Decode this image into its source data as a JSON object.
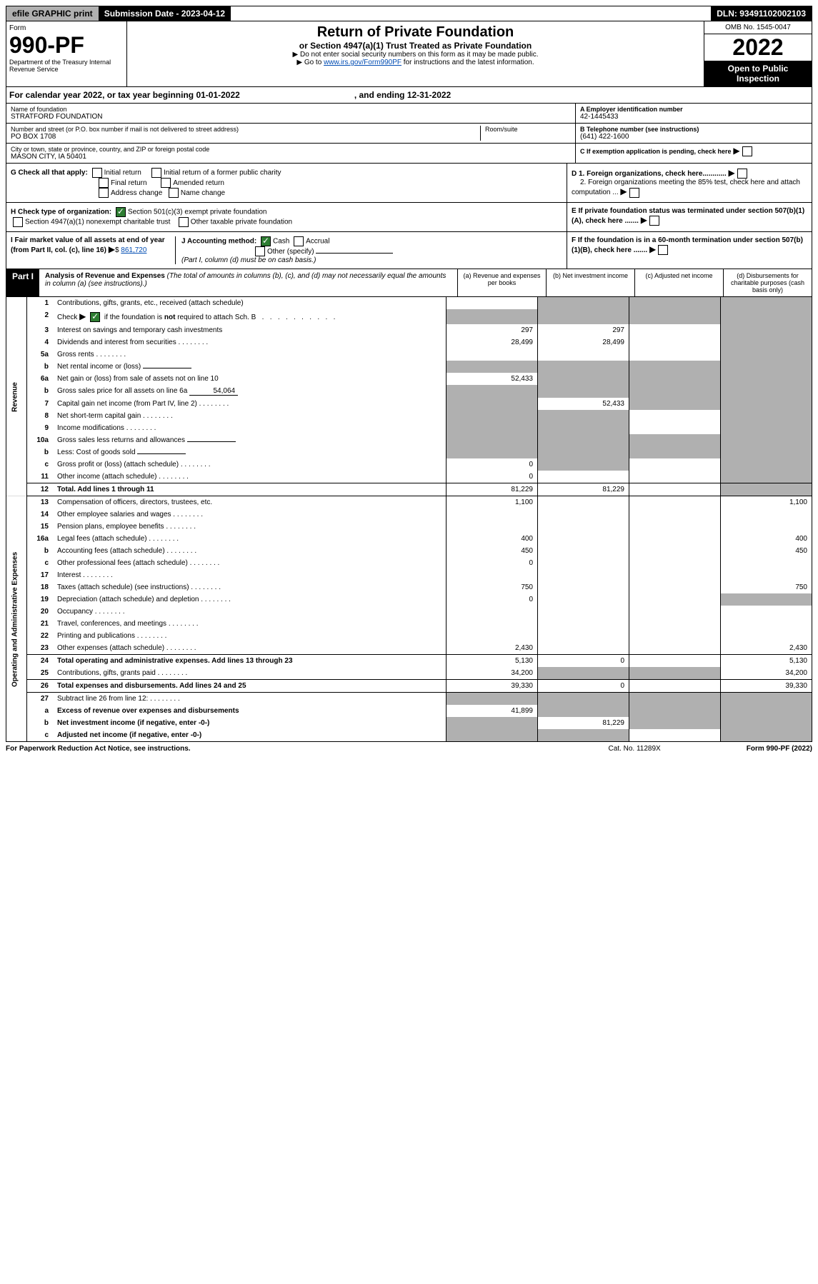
{
  "topbar": {
    "efile": "efile GRAPHIC print",
    "submission": "Submission Date - 2023-04-12",
    "dln": "DLN: 93491102002103"
  },
  "header": {
    "form_label": "Form",
    "form_number": "990-PF",
    "dept": "Department of the Treasury\nInternal Revenue Service",
    "title": "Return of Private Foundation",
    "subtitle": "or Section 4947(a)(1) Trust Treated as Private Foundation",
    "instr1": "▶ Do not enter social security numbers on this form as it may be made public.",
    "instr2_pre": "▶ Go to ",
    "instr2_link": "www.irs.gov/Form990PF",
    "instr2_post": " for instructions and the latest information.",
    "omb": "OMB No. 1545-0047",
    "year": "2022",
    "open": "Open to Public Inspection"
  },
  "cal_year": "For calendar year 2022, or tax year beginning 01-01-2022",
  "cal_year_end": ", and ending 12-31-2022",
  "foundation": {
    "name_label": "Name of foundation",
    "name": "STRATFORD FOUNDATION",
    "addr_label": "Number and street (or P.O. box number if mail is not delivered to street address)",
    "addr": "PO BOX 1708",
    "room_label": "Room/suite",
    "city_label": "City or town, state or province, country, and ZIP or foreign postal code",
    "city": "MASON CITY, IA  50401",
    "ein_label": "A Employer identification number",
    "ein": "42-1445433",
    "phone_label": "B Telephone number (see instructions)",
    "phone": "(641) 422-1600",
    "c_label": "C If exemption application is pending, check here",
    "d1": "D 1. Foreign organizations, check here............",
    "d2": "2. Foreign organizations meeting the 85% test, check here and attach computation ...",
    "e": "E  If private foundation status was terminated under section 507(b)(1)(A), check here .......",
    "f": "F  If the foundation is in a 60-month termination under section 507(b)(1)(B), check here .......",
    "g_label": "G Check all that apply:",
    "g_initial": "Initial return",
    "g_initial_former": "Initial return of a former public charity",
    "g_final": "Final return",
    "g_amended": "Amended return",
    "g_addr": "Address change",
    "g_name": "Name change",
    "h_label": "H Check type of organization:",
    "h_501c3": "Section 501(c)(3) exempt private foundation",
    "h_4947": "Section 4947(a)(1) nonexempt charitable trust",
    "h_other": "Other taxable private foundation",
    "i_label": "I Fair market value of all assets at end of year (from Part II, col. (c), line 16)",
    "i_value": "861,720",
    "j_label": "J Accounting method:",
    "j_cash": "Cash",
    "j_accrual": "Accrual",
    "j_other": "Other (specify)",
    "j_note": "(Part I, column (d) must be on cash basis.)"
  },
  "part1": {
    "label": "Part I",
    "title": "Analysis of Revenue and Expenses",
    "note": "(The total of amounts in columns (b), (c), and (d) may not necessarily equal the amounts in column (a) (see instructions).)",
    "col_a": "(a)   Revenue and expenses per books",
    "col_b": "(b)   Net investment income",
    "col_c": "(c)   Adjusted net income",
    "col_d": "(d)   Disbursements for charitable purposes (cash basis only)"
  },
  "side": {
    "revenue": "Revenue",
    "expenses": "Operating and Administrative Expenses"
  },
  "rows": [
    {
      "n": "1",
      "label": "Contributions, gifts, grants, etc., received (attach schedule)",
      "a": "",
      "b": "S",
      "c": "S",
      "d": "S"
    },
    {
      "n": "2",
      "label": "Check ▶ ☑ if the foundation is not required to attach Sch. B",
      "type": "check",
      "a": "S",
      "b": "S",
      "c": "S",
      "d": "S"
    },
    {
      "n": "3",
      "label": "Interest on savings and temporary cash investments",
      "a": "297",
      "b": "297",
      "c": "",
      "d": "S"
    },
    {
      "n": "4",
      "label": "Dividends and interest from securities",
      "a": "28,499",
      "b": "28,499",
      "c": "",
      "d": "S"
    },
    {
      "n": "5a",
      "label": "Gross rents",
      "a": "",
      "b": "",
      "c": "",
      "d": "S"
    },
    {
      "n": "b",
      "label": "Net rental income or (loss)",
      "sub": "",
      "a": "S",
      "b": "S",
      "c": "S",
      "d": "S"
    },
    {
      "n": "6a",
      "label": "Net gain or (loss) from sale of assets not on line 10",
      "a": "52,433",
      "b": "S",
      "c": "S",
      "d": "S"
    },
    {
      "n": "b",
      "label": "Gross sales price for all assets on line 6a",
      "sub": "54,064",
      "a": "S",
      "b": "S",
      "c": "S",
      "d": "S"
    },
    {
      "n": "7",
      "label": "Capital gain net income (from Part IV, line 2)",
      "a": "S",
      "b": "52,433",
      "c": "S",
      "d": "S"
    },
    {
      "n": "8",
      "label": "Net short-term capital gain",
      "a": "S",
      "b": "S",
      "c": "",
      "d": "S"
    },
    {
      "n": "9",
      "label": "Income modifications",
      "a": "S",
      "b": "S",
      "c": "",
      "d": "S"
    },
    {
      "n": "10a",
      "label": "Gross sales less returns and allowances",
      "sub": "",
      "a": "S",
      "b": "S",
      "c": "S",
      "d": "S"
    },
    {
      "n": "b",
      "label": "Less: Cost of goods sold",
      "sub": "",
      "a": "S",
      "b": "S",
      "c": "S",
      "d": "S"
    },
    {
      "n": "c",
      "label": "Gross profit or (loss) (attach schedule)",
      "a": "0",
      "b": "S",
      "c": "",
      "d": "S"
    },
    {
      "n": "11",
      "label": "Other income (attach schedule)",
      "a": "0",
      "b": "",
      "c": "",
      "d": "S"
    },
    {
      "n": "12",
      "label": "Total. Add lines 1 through 11",
      "bold": true,
      "a": "81,229",
      "b": "81,229",
      "c": "",
      "d": "S",
      "sep": true
    },
    {
      "n": "13",
      "label": "Compensation of officers, directors, trustees, etc.",
      "a": "1,100",
      "b": "",
      "c": "",
      "d": "1,100",
      "sep": true
    },
    {
      "n": "14",
      "label": "Other employee salaries and wages",
      "a": "",
      "b": "",
      "c": "",
      "d": ""
    },
    {
      "n": "15",
      "label": "Pension plans, employee benefits",
      "a": "",
      "b": "",
      "c": "",
      "d": ""
    },
    {
      "n": "16a",
      "label": "Legal fees (attach schedule)",
      "a": "400",
      "b": "",
      "c": "",
      "d": "400"
    },
    {
      "n": "b",
      "label": "Accounting fees (attach schedule)",
      "a": "450",
      "b": "",
      "c": "",
      "d": "450"
    },
    {
      "n": "c",
      "label": "Other professional fees (attach schedule)",
      "a": "0",
      "b": "",
      "c": "",
      "d": ""
    },
    {
      "n": "17",
      "label": "Interest",
      "a": "",
      "b": "",
      "c": "",
      "d": ""
    },
    {
      "n": "18",
      "label": "Taxes (attach schedule) (see instructions)",
      "a": "750",
      "b": "",
      "c": "",
      "d": "750"
    },
    {
      "n": "19",
      "label": "Depreciation (attach schedule) and depletion",
      "a": "0",
      "b": "",
      "c": "",
      "d": "S"
    },
    {
      "n": "20",
      "label": "Occupancy",
      "a": "",
      "b": "",
      "c": "",
      "d": ""
    },
    {
      "n": "21",
      "label": "Travel, conferences, and meetings",
      "a": "",
      "b": "",
      "c": "",
      "d": ""
    },
    {
      "n": "22",
      "label": "Printing and publications",
      "a": "",
      "b": "",
      "c": "",
      "d": ""
    },
    {
      "n": "23",
      "label": "Other expenses (attach schedule)",
      "a": "2,430",
      "b": "",
      "c": "",
      "d": "2,430"
    },
    {
      "n": "24",
      "label": "Total operating and administrative expenses. Add lines 13 through 23",
      "bold": true,
      "a": "5,130",
      "b": "0",
      "c": "",
      "d": "5,130",
      "sep": true
    },
    {
      "n": "25",
      "label": "Contributions, gifts, grants paid",
      "a": "34,200",
      "b": "S",
      "c": "S",
      "d": "34,200"
    },
    {
      "n": "26",
      "label": "Total expenses and disbursements. Add lines 24 and 25",
      "bold": true,
      "a": "39,330",
      "b": "0",
      "c": "",
      "d": "39,330",
      "sep": true
    },
    {
      "n": "27",
      "label": "Subtract line 26 from line 12:",
      "a": "S",
      "b": "S",
      "c": "S",
      "d": "S",
      "sep": true
    },
    {
      "n": "a",
      "label": "Excess of revenue over expenses and disbursements",
      "bold": true,
      "a": "41,899",
      "b": "S",
      "c": "S",
      "d": "S"
    },
    {
      "n": "b",
      "label": "Net investment income (if negative, enter -0-)",
      "bold": true,
      "a": "S",
      "b": "81,229",
      "c": "S",
      "d": "S"
    },
    {
      "n": "c",
      "label": "Adjusted net income (if negative, enter -0-)",
      "bold": true,
      "a": "S",
      "b": "S",
      "c": "",
      "d": "S"
    }
  ],
  "footer": {
    "left": "For Paperwork Reduction Act Notice, see instructions.",
    "cat": "Cat. No. 11289X",
    "right": "Form 990-PF (2022)"
  }
}
